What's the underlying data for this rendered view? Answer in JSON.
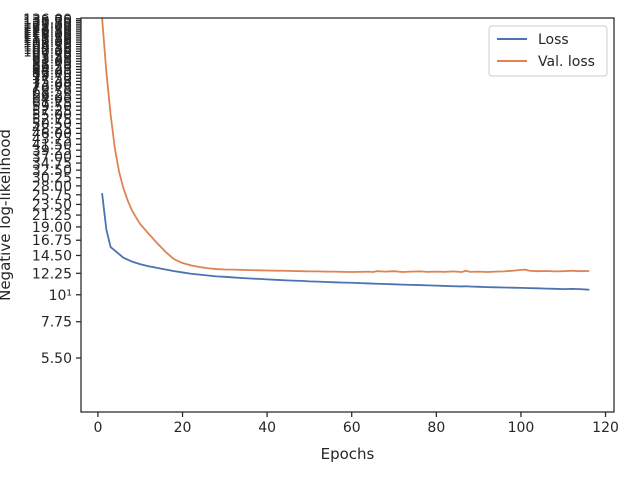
{
  "chart_data": {
    "type": "line",
    "title": "",
    "xlabel": "Epochs",
    "ylabel": "Negative log-likelihood",
    "xlim": [
      -4,
      122
    ],
    "ylim": [
      3.3,
      137
    ],
    "y_scale": "log",
    "grid": false,
    "legend": {
      "placement": "top-right",
      "entries": [
        "Loss",
        "Val. loss"
      ]
    },
    "x_ticks": [
      0,
      20,
      40,
      60,
      80,
      100,
      120
    ],
    "x_tick_labels": [
      "0",
      "20",
      "40",
      "60",
      "80",
      "100",
      "120"
    ],
    "y_ticks": [
      5.5,
      7.75,
      10,
      12.25,
      14.5,
      16.75,
      19,
      21.25,
      23.5,
      25.75,
      28,
      30.25,
      32.5,
      34.75,
      37,
      39.25,
      41.5,
      43.75,
      46,
      48.25,
      50.5,
      52.75,
      55,
      57.25,
      59.5,
      61.75,
      64,
      66.25,
      68.5,
      70.75,
      73,
      75.25,
      77.5,
      79.75,
      82,
      84.25,
      86.5,
      88.75,
      91,
      93.25,
      95.5,
      97.75,
      100,
      102.25,
      104.5,
      106.75,
      109,
      111.25,
      113.5,
      115.75,
      118,
      120.25,
      122.5,
      124.75,
      127,
      129.25,
      131.5,
      133.75,
      136
    ],
    "y_tick_labels": [
      "5.50",
      "7.75",
      "10¹",
      "12.25",
      "14.50",
      "16.75",
      "19.00",
      "21.25",
      "23.50",
      "25.75",
      "28.00",
      "30.25",
      "32.50",
      "34.75",
      "37.00",
      "39.25",
      "41.50",
      "43.75",
      "46.00",
      "48.25",
      "50.50",
      "52.75",
      "55.00",
      "57.25",
      "59.50",
      "61.75",
      "64.00",
      "66.25",
      "68.50",
      "70.75",
      "73.00",
      "75.25",
      "77.50",
      "79.75",
      "82.00",
      "84.25",
      "86.50",
      "88.75",
      "91.00",
      "93.25",
      "95.50",
      "97.75",
      "100.00",
      "102.25",
      "104.50",
      "106.75",
      "109.00",
      "111.25",
      "113.50",
      "115.75",
      "118.00",
      "120.25",
      "122.50",
      "124.75",
      "127.00",
      "129.25",
      "131.50",
      "133.75",
      "136.00"
    ],
    "series": [
      {
        "name": "Loss",
        "color": "#4c72b0",
        "x": [
          1,
          2,
          3,
          5,
          6,
          8,
          10,
          12,
          14,
          16,
          18,
          20,
          22,
          24,
          26,
          28,
          30,
          32,
          34,
          36,
          38,
          40,
          42,
          44,
          46,
          48,
          50,
          52,
          54,
          56,
          58,
          60,
          62,
          64,
          66,
          68,
          70,
          72,
          74,
          76,
          78,
          80,
          82,
          84,
          86,
          87,
          88,
          90,
          92,
          94,
          96,
          98,
          100,
          102,
          104,
          106,
          108,
          110,
          112,
          114,
          116
        ],
        "y": [
          26.0,
          18.5,
          15.7,
          14.7,
          14.2,
          13.7,
          13.35,
          13.1,
          12.9,
          12.7,
          12.5,
          12.35,
          12.2,
          12.1,
          12.0,
          11.9,
          11.85,
          11.78,
          11.72,
          11.66,
          11.62,
          11.57,
          11.52,
          11.47,
          11.43,
          11.4,
          11.35,
          11.32,
          11.28,
          11.25,
          11.22,
          11.2,
          11.16,
          11.13,
          11.1,
          11.07,
          11.04,
          11.01,
          10.98,
          10.96,
          10.93,
          10.9,
          10.87,
          10.84,
          10.82,
          10.84,
          10.81,
          10.78,
          10.75,
          10.73,
          10.71,
          10.69,
          10.67,
          10.65,
          10.63,
          10.6,
          10.58,
          10.55,
          10.57,
          10.55,
          10.49
        ]
      },
      {
        "name": "Val. loss",
        "color": "#dd8452",
        "x": [
          1,
          2,
          3,
          4,
          5,
          6,
          7,
          8,
          9,
          10,
          12,
          14,
          16,
          18,
          20,
          22,
          24,
          26,
          28,
          30,
          32,
          34,
          36,
          38,
          40,
          42,
          44,
          46,
          48,
          50,
          52,
          54,
          56,
          58,
          60,
          62,
          64,
          65,
          66,
          68,
          70,
          72,
          74,
          76,
          78,
          80,
          82,
          84,
          86,
          87,
          88,
          90,
          92,
          94,
          96,
          98,
          100,
          101,
          102,
          104,
          106,
          108,
          110,
          112,
          114,
          116
        ],
        "y": [
          136.0,
          82.0,
          55.0,
          40.0,
          32.0,
          27.5,
          24.5,
          22.3,
          20.8,
          19.5,
          17.8,
          16.3,
          15.0,
          14.0,
          13.5,
          13.2,
          13.0,
          12.85,
          12.75,
          12.7,
          12.68,
          12.65,
          12.62,
          12.6,
          12.58,
          12.56,
          12.55,
          12.52,
          12.5,
          12.48,
          12.48,
          12.45,
          12.45,
          12.42,
          12.4,
          12.42,
          12.45,
          12.4,
          12.5,
          12.45,
          12.5,
          12.4,
          12.45,
          12.48,
          12.42,
          12.45,
          12.42,
          12.48,
          12.4,
          12.55,
          12.42,
          12.45,
          12.4,
          12.45,
          12.48,
          12.55,
          12.65,
          12.68,
          12.55,
          12.5,
          12.52,
          12.48,
          12.5,
          12.55,
          12.5,
          12.52
        ]
      }
    ]
  }
}
